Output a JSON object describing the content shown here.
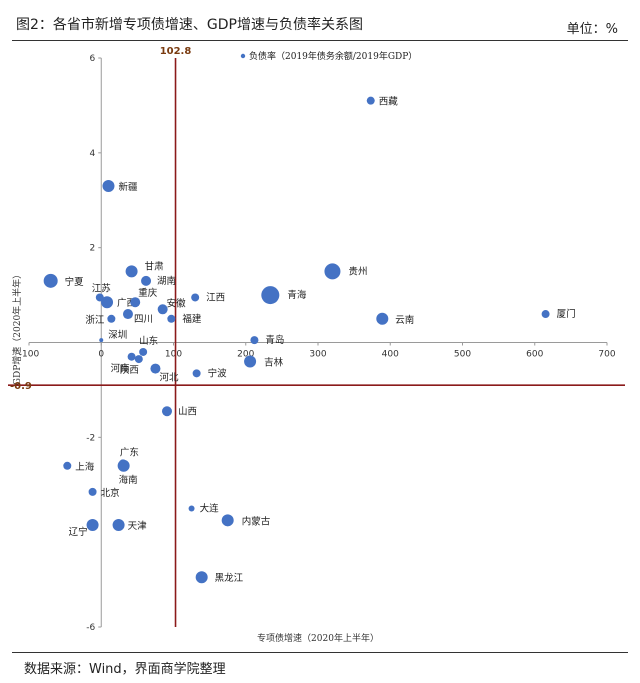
{
  "header": {
    "title": "图2：各省市新增专项债增速、GDP增速与负债率关系图",
    "unit": "单位：%"
  },
  "footer": {
    "source": "数据来源：Wind，界面商学院整理"
  },
  "chart_data": {
    "type": "scatter",
    "title": "",
    "xlabel": "专项债增速（2020年上半年）",
    "ylabel": "GDP增速（2020年上半年）",
    "xlim": [
      -100,
      700
    ],
    "ylim": [
      -6,
      6
    ],
    "x_ticks": [
      -100,
      0,
      100,
      200,
      300,
      400,
      500,
      600,
      700
    ],
    "y_ticks": [
      -6,
      -2,
      2,
      4,
      6
    ],
    "point_color": "#4472C4",
    "reference_color": "#8B1A1A",
    "reference_lines": {
      "x": 102.8,
      "y": -0.9
    },
    "reference_labels": {
      "x": "102.8",
      "y": "-0.9"
    },
    "legend": {
      "entry": "负债率（2019年债务余额/2019年GDP）",
      "position": "top"
    },
    "points": [
      {
        "name": "西藏",
        "x": 373,
        "y": 5.1,
        "size": 4
      },
      {
        "name": "新疆",
        "x": 10,
        "y": 3.3,
        "size": 6
      },
      {
        "name": "宁夏",
        "x": -70,
        "y": 1.3,
        "size": 7
      },
      {
        "name": "甘肃",
        "x": 42,
        "y": 1.5,
        "size": 6
      },
      {
        "name": "湖南",
        "x": 62,
        "y": 1.3,
        "size": 5
      },
      {
        "name": "贵州",
        "x": 320,
        "y": 1.5,
        "size": 8
      },
      {
        "name": "青海",
        "x": 234,
        "y": 1.0,
        "size": 9
      },
      {
        "name": "江苏",
        "x": -2,
        "y": 0.95,
        "size": 4
      },
      {
        "name": "广西",
        "x": 8,
        "y": 0.85,
        "size": 6
      },
      {
        "name": "重庆",
        "x": 47,
        "y": 0.85,
        "size": 5
      },
      {
        "name": "安徽",
        "x": 85,
        "y": 0.7,
        "size": 5
      },
      {
        "name": "江西",
        "x": 130,
        "y": 0.95,
        "size": 4
      },
      {
        "name": "浙江",
        "x": 14,
        "y": 0.5,
        "size": 4
      },
      {
        "name": "四川",
        "x": 37,
        "y": 0.6,
        "size": 5
      },
      {
        "name": "福建",
        "x": 97,
        "y": 0.5,
        "size": 4
      },
      {
        "name": "云南",
        "x": 389,
        "y": 0.5,
        "size": 6
      },
      {
        "name": "厦门",
        "x": 615,
        "y": 0.6,
        "size": 4
      },
      {
        "name": "深圳",
        "x": 0,
        "y": 0.05,
        "size": 2
      },
      {
        "name": "青岛",
        "x": 212,
        "y": 0.05,
        "size": 4
      },
      {
        "name": "山东",
        "x": 58,
        "y": -0.2,
        "size": 4
      },
      {
        "name": "河南",
        "x": 42,
        "y": -0.3,
        "size": 4
      },
      {
        "name": "陕西",
        "x": 52,
        "y": -0.35,
        "size": 4
      },
      {
        "name": "河北",
        "x": 75,
        "y": -0.55,
        "size": 5
      },
      {
        "name": "吉林",
        "x": 206,
        "y": -0.4,
        "size": 6
      },
      {
        "name": "宁波",
        "x": 132,
        "y": -0.65,
        "size": 4
      },
      {
        "name": "山西",
        "x": 91,
        "y": -1.45,
        "size": 5
      },
      {
        "name": "广东",
        "x": 30,
        "y": -2.55,
        "size": 4
      },
      {
        "name": "上海",
        "x": -47,
        "y": -2.6,
        "size": 4
      },
      {
        "name": "海南",
        "x": 31,
        "y": -2.6,
        "size": 6
      },
      {
        "name": "北京",
        "x": -12,
        "y": -3.15,
        "size": 4
      },
      {
        "name": "大连",
        "x": 125,
        "y": -3.5,
        "size": 3
      },
      {
        "name": "内蒙古",
        "x": 175,
        "y": -3.75,
        "size": 6
      },
      {
        "name": "天津",
        "x": 24,
        "y": -3.85,
        "size": 6
      },
      {
        "name": "辽宁",
        "x": -12,
        "y": -3.85,
        "size": 6
      },
      {
        "name": "黑龙江",
        "x": 139,
        "y": -4.95,
        "size": 6
      }
    ]
  }
}
